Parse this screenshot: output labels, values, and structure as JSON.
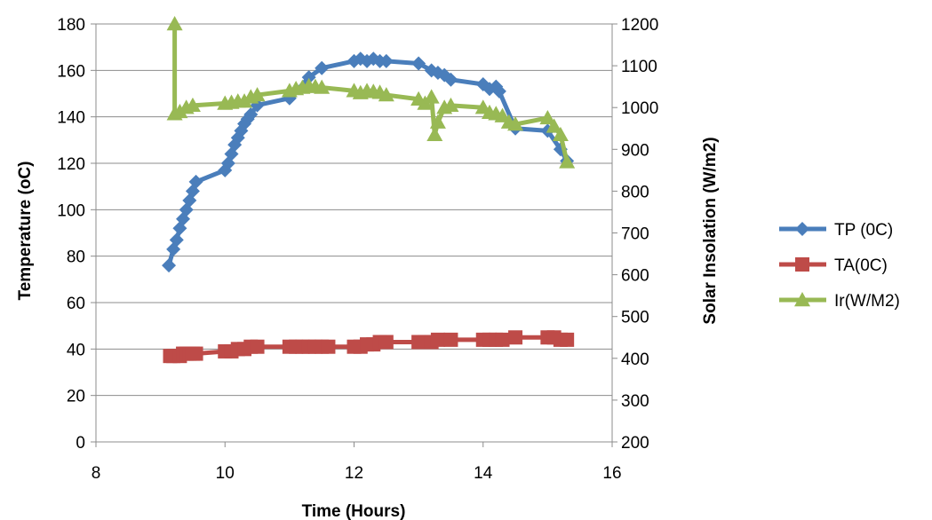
{
  "chart_data": {
    "type": "line",
    "xlabel": "Time (Hours)",
    "ylabel": "Temperature (oC)",
    "y2label": "Solar Insolation (W/m2)",
    "xlim": [
      8,
      16
    ],
    "ylim": [
      0,
      180
    ],
    "y2lim": [
      200,
      1200
    ],
    "xticks": [
      "8",
      "10",
      "12",
      "14",
      "16"
    ],
    "yticks": [
      "0",
      "20",
      "40",
      "60",
      "80",
      "100",
      "120",
      "140",
      "160",
      "180"
    ],
    "y2ticks": [
      "200",
      "300",
      "400",
      "500",
      "600",
      "700",
      "800",
      "900",
      "1000",
      "1100",
      "1200"
    ],
    "grid": true,
    "legend_position": "right",
    "series": [
      {
        "name": "TP (0C)",
        "axis": "left",
        "color": "#4a7ebb",
        "marker": "diamond",
        "x": [
          9.13,
          9.2,
          9.25,
          9.3,
          9.35,
          9.4,
          9.45,
          9.5,
          9.55,
          10.0,
          10.05,
          10.1,
          10.15,
          10.2,
          10.25,
          10.3,
          10.35,
          10.4,
          10.5,
          11.0,
          11.3,
          11.5,
          12.0,
          12.1,
          12.2,
          12.3,
          12.4,
          12.5,
          13.0,
          13.2,
          13.3,
          13.4,
          13.5,
          14.0,
          14.1,
          14.2,
          14.25,
          14.5,
          15.0,
          15.2,
          15.3
        ],
        "values": [
          76,
          83,
          87,
          92,
          96,
          100,
          104,
          108,
          112,
          117,
          120,
          124,
          128,
          131,
          134,
          137,
          139,
          141,
          145,
          148,
          157,
          161,
          164,
          165,
          164,
          165,
          164,
          164,
          163,
          160,
          159,
          158,
          156,
          154,
          152,
          153,
          151,
          135,
          134,
          126,
          121
        ]
      },
      {
        "name": "TA(0C)",
        "axis": "left",
        "color": "#be4b48",
        "marker": "square",
        "x": [
          9.15,
          9.2,
          9.3,
          9.35,
          9.4,
          9.45,
          9.5,
          9.55,
          10.0,
          10.1,
          10.2,
          10.3,
          10.4,
          10.5,
          11.0,
          11.1,
          11.2,
          11.3,
          11.4,
          11.5,
          11.6,
          12.0,
          12.1,
          12.2,
          12.3,
          12.4,
          12.5,
          13.0,
          13.1,
          13.2,
          13.3,
          13.5,
          14.0,
          14.1,
          14.2,
          14.3,
          14.5,
          15.0,
          15.1,
          15.2,
          15.3
        ],
        "values": [
          37,
          37,
          37,
          38,
          38,
          38,
          38,
          38,
          39,
          39,
          40,
          40,
          41,
          41,
          41,
          41,
          41,
          41,
          41,
          41,
          41,
          41,
          41,
          42,
          42,
          43,
          43,
          43,
          43,
          43,
          44,
          44,
          44,
          44,
          44,
          44,
          45,
          45,
          45,
          44,
          44
        ]
      },
      {
        "name": "Ir(W/M2)",
        "axis": "right",
        "color": "#98b954",
        "marker": "triangle",
        "x": [
          9.22,
          9.22,
          9.3,
          9.4,
          9.5,
          10.0,
          10.1,
          10.2,
          10.3,
          10.4,
          10.5,
          11.0,
          11.1,
          11.2,
          11.3,
          11.4,
          11.5,
          12.0,
          12.1,
          12.2,
          12.3,
          12.4,
          12.5,
          13.0,
          13.1,
          13.2,
          13.25,
          13.3,
          13.4,
          13.5,
          14.0,
          14.1,
          14.2,
          14.3,
          14.4,
          14.5,
          15.0,
          15.1,
          15.2,
          15.3
        ],
        "values": [
          1200,
          985,
          990,
          1000,
          1005,
          1010,
          1012,
          1015,
          1015,
          1025,
          1030,
          1040,
          1045,
          1048,
          1052,
          1050,
          1048,
          1040,
          1035,
          1040,
          1038,
          1036,
          1030,
          1020,
          1010,
          1025,
          935,
          965,
          1000,
          1005,
          1000,
          988,
          985,
          980,
          965,
          960,
          975,
          955,
          935,
          870
        ]
      }
    ]
  }
}
